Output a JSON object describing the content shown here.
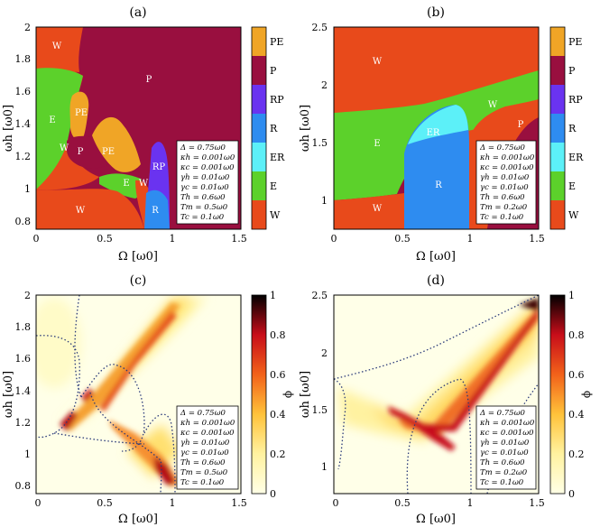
{
  "chart_data": [
    {
      "type": "heatmap",
      "panel": "(a)",
      "xlabel": "Ω   [ω0]",
      "ylabel": "ωh   [ω0]",
      "xlim": [
        0,
        1.5
      ],
      "ylim": [
        0.75,
        2.0
      ],
      "xticks": [
        "0",
        "0.5",
        "1",
        "1.5"
      ],
      "yticks": [
        "0.8",
        "1",
        "1.2",
        "1.4",
        "1.6",
        "1.8",
        "2"
      ],
      "region_labels": [
        "W",
        "P",
        "E",
        "PE",
        "W",
        "P",
        "PE",
        "E",
        "W",
        "RP",
        "R",
        "W"
      ],
      "colorbar": [
        "PE",
        "P",
        "RP",
        "R",
        "ER",
        "E",
        "W"
      ],
      "params": [
        "Δ = 0.75ω0",
        "κh = 0.001ω0",
        "κc = 0.001ω0",
        "γh = 0.01ω0",
        "γc = 0.01ω0",
        "Th = 0.6ω0",
        "Tm = 0.5ω0",
        "Tc = 0.1ω0"
      ]
    },
    {
      "type": "heatmap",
      "panel": "(b)",
      "xlabel": "Ω   [ω0]",
      "ylabel": "ωh   [ω0]",
      "xlim": [
        0,
        1.5
      ],
      "ylim": [
        0.75,
        2.5
      ],
      "xticks": [
        "0",
        "0.5",
        "1",
        "1.5"
      ],
      "yticks": [
        "1",
        "1.5",
        "2",
        "2.5"
      ],
      "region_labels": [
        "W",
        "E",
        "ER",
        "R",
        "W",
        "W",
        "P"
      ],
      "colorbar": [
        "PE",
        "P",
        "RP",
        "R",
        "ER",
        "E",
        "W"
      ],
      "params": [
        "Δ = 0.75ω0",
        "κh = 0.001ω0",
        "κc = 0.001ω0",
        "γh = 0.01ω0",
        "γc = 0.01ω0",
        "Th = 0.6ω0",
        "Tm = 0.2ω0",
        "Tc = 0.1ω0"
      ]
    },
    {
      "type": "heatmap",
      "panel": "(c)",
      "xlabel": "Ω   [ω0]",
      "ylabel": "ωh   [ω0]",
      "zlabel": "ϕ",
      "xlim": [
        0,
        1.5
      ],
      "ylim": [
        0.75,
        2.0
      ],
      "zlim": [
        0,
        1
      ],
      "xticks": [
        "0",
        "0.5",
        "1",
        "1.5"
      ],
      "yticks": [
        "0.8",
        "1",
        "1.2",
        "1.4",
        "1.6",
        "1.8",
        "2"
      ],
      "colorbar_ticks": [
        "0",
        "0.2",
        "0.4",
        "0.6",
        "0.8",
        "1"
      ],
      "params": [
        "Δ = 0.75ω0",
        "κh = 0.001ω0",
        "κc = 0.001ω0",
        "γh = 0.01ω0",
        "γc = 0.01ω0",
        "Th = 0.6ω0",
        "Tm = 0.5ω0",
        "Tc = 0.1ω0"
      ]
    },
    {
      "type": "heatmap",
      "panel": "(d)",
      "xlabel": "Ω   [ω0]",
      "ylabel": "ωh   [ω0]",
      "zlabel": "ϕ",
      "xlim": [
        0,
        1.5
      ],
      "ylim": [
        0.75,
        2.5
      ],
      "zlim": [
        0,
        1
      ],
      "xticks": [
        "0",
        "0.5",
        "1",
        "1.5"
      ],
      "yticks": [
        "1",
        "1.5",
        "2",
        "2.5"
      ],
      "colorbar_ticks": [
        "0",
        "0.2",
        "0.4",
        "0.6",
        "0.8",
        "1"
      ],
      "params": [
        "Δ = 0.75ω0",
        "κh = 0.001ω0",
        "κc = 0.001ω0",
        "γh = 0.01ω0",
        "γc = 0.01ω0",
        "Th = 0.6ω0",
        "Tm = 0.2ω0",
        "Tc = 0.1ω0"
      ]
    }
  ],
  "colors": {
    "W": "#e84a1b",
    "E": "#5cd12b",
    "ER": "#5cf0f8",
    "R": "#2e8cf0",
    "RP": "#6a33f0",
    "P": "#990f3f",
    "PE": "#f0a526"
  }
}
